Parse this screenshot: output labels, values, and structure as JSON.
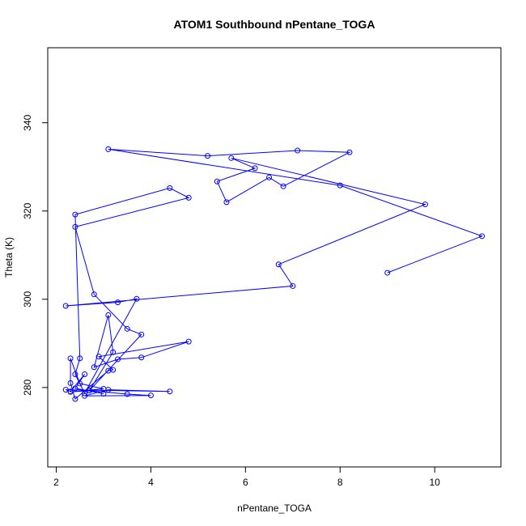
{
  "chart_data": {
    "type": "scatter",
    "title": "ATOM1 Southbound nPentane_TOGA",
    "xlabel": "nPentane_TOGA",
    "ylabel": "Theta (K)",
    "xlim": [
      1.82,
      11.4
    ],
    "ylim": [
      262,
      357
    ],
    "xticks": [
      2,
      4,
      6,
      8,
      10
    ],
    "yticks": [
      280,
      300,
      320,
      340
    ],
    "grid": false,
    "series_color": "#0000ff",
    "marker": "open-circle",
    "connect_points": true,
    "x": [
      9.0,
      11.0,
      8.0,
      3.1,
      5.2,
      7.1,
      8.2,
      6.8,
      6.5,
      5.6,
      5.4,
      6.2,
      5.7,
      9.8,
      6.7,
      7.0,
      2.2,
      3.3,
      3.7,
      2.6,
      2.4,
      2.5,
      2.4,
      4.4,
      4.8,
      2.4,
      2.8,
      3.5,
      3.8,
      2.7,
      3.2,
      3.1,
      2.8,
      3.3,
      3.8,
      4.8,
      2.9,
      3.2,
      3.1,
      2.4,
      2.3,
      2.3,
      2.5,
      3.0,
      2.3,
      2.7,
      3.5,
      4.0,
      2.6,
      3.1,
      4.4,
      2.2,
      2.3,
      2.6,
      2.4,
      3.0
    ],
    "y": [
      306,
      314.3,
      325.8,
      334,
      332.5,
      333.7,
      333.3,
      325.6,
      327.6,
      322,
      326.7,
      329.7,
      332,
      321.5,
      307.9,
      303,
      298.5,
      299.3,
      300.1,
      278.7,
      283,
      286.6,
      319.2,
      325.2,
      323,
      316.4,
      301.1,
      293.3,
      292,
      279.3,
      288,
      296.4,
      284.6,
      286.4,
      286.8,
      290.4,
      287,
      284,
      283.8,
      277.4,
      281,
      286.6,
      280.9,
      279.7,
      279,
      279.3,
      278.5,
      278.2,
      278.1,
      279.5,
      279.1,
      279.5,
      279.1,
      283,
      279.8,
      278.6
    ]
  }
}
